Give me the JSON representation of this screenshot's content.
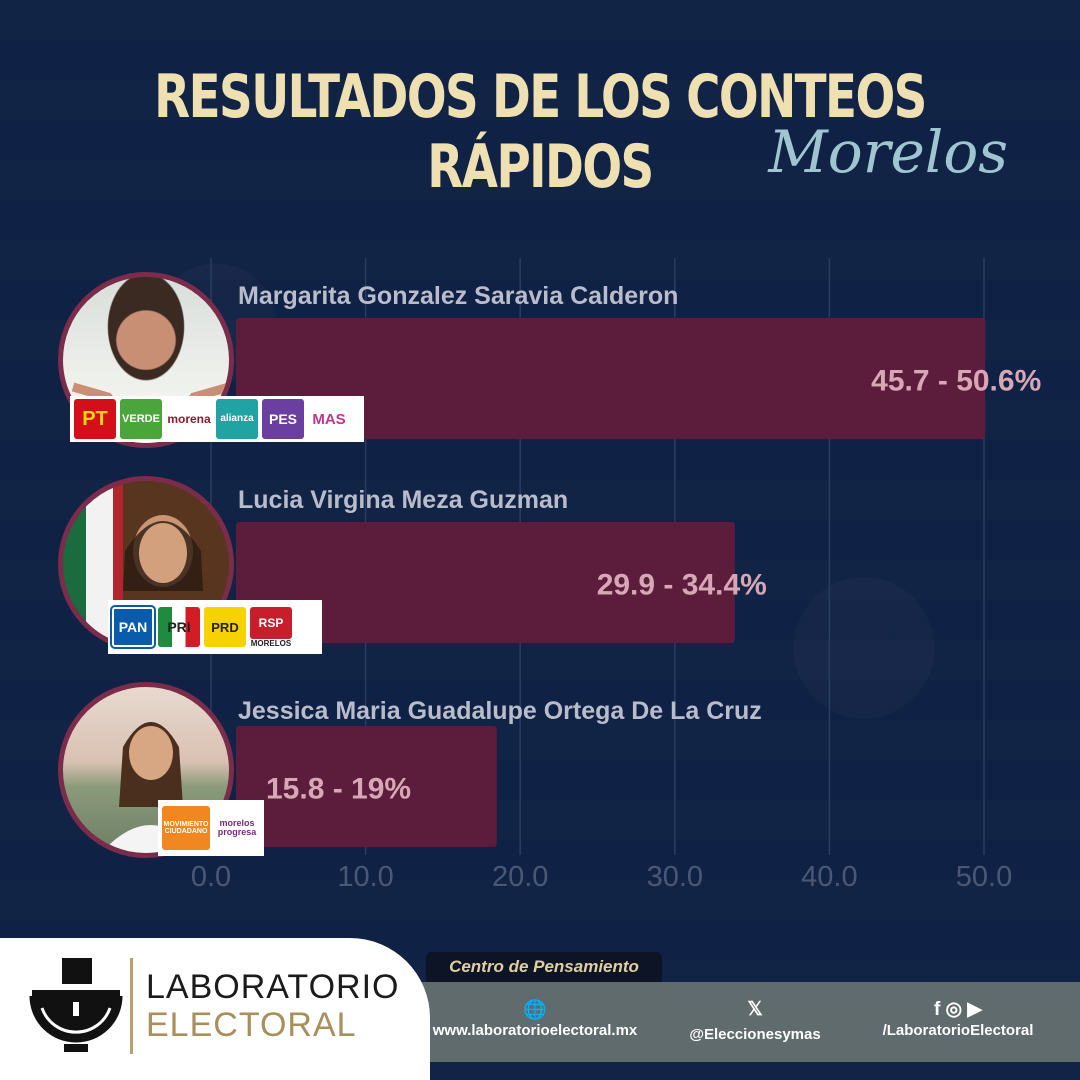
{
  "header": {
    "title": "RESULTADOS DE LOS CONTEOS RÁPIDOS",
    "subtitle": "Morelos"
  },
  "chart_data": {
    "type": "bar",
    "orientation": "horizontal",
    "categories": [
      "Margarita Gonzalez Saravia Calderon",
      "Lucia Virgina Meza Guzman",
      "Jessica Maria Guadalupe Ortega De La Cruz"
    ],
    "series": [
      {
        "low": [
          45.7,
          29.9,
          15.8
        ],
        "high": [
          50.6,
          34.4,
          19
        ]
      }
    ],
    "data_labels": [
      "45.7 - 50.6%",
      "29.9 - 34.4%",
      "15.8 - 19%"
    ],
    "x_ticks": [
      "0.0",
      "10.0",
      "20.0",
      "30.0",
      "40.0",
      "50.0"
    ],
    "xlim": [
      0,
      50
    ],
    "grid": true,
    "bar_color": "#5c1d3c"
  },
  "candidates": [
    {
      "parties": [
        "PT",
        "VERDE",
        "morena",
        "alianza",
        "PES",
        "MAS"
      ]
    },
    {
      "parties": [
        "PAN",
        "PRI",
        "PRD",
        "RSP",
        "MORELOS"
      ]
    },
    {
      "parties": [
        "MOVIMIENTO CIUDADANO",
        "morelos progresa"
      ]
    }
  ],
  "footer": {
    "brand_line1": "LABORATORIO",
    "brand_line2": "ELECTORAL",
    "tagline": "Centro de Pensamiento",
    "website": "www.laboratorioelectoral.mx",
    "twitter": "@Eleccionesymas",
    "social": "/LaboratorioElectoral"
  }
}
